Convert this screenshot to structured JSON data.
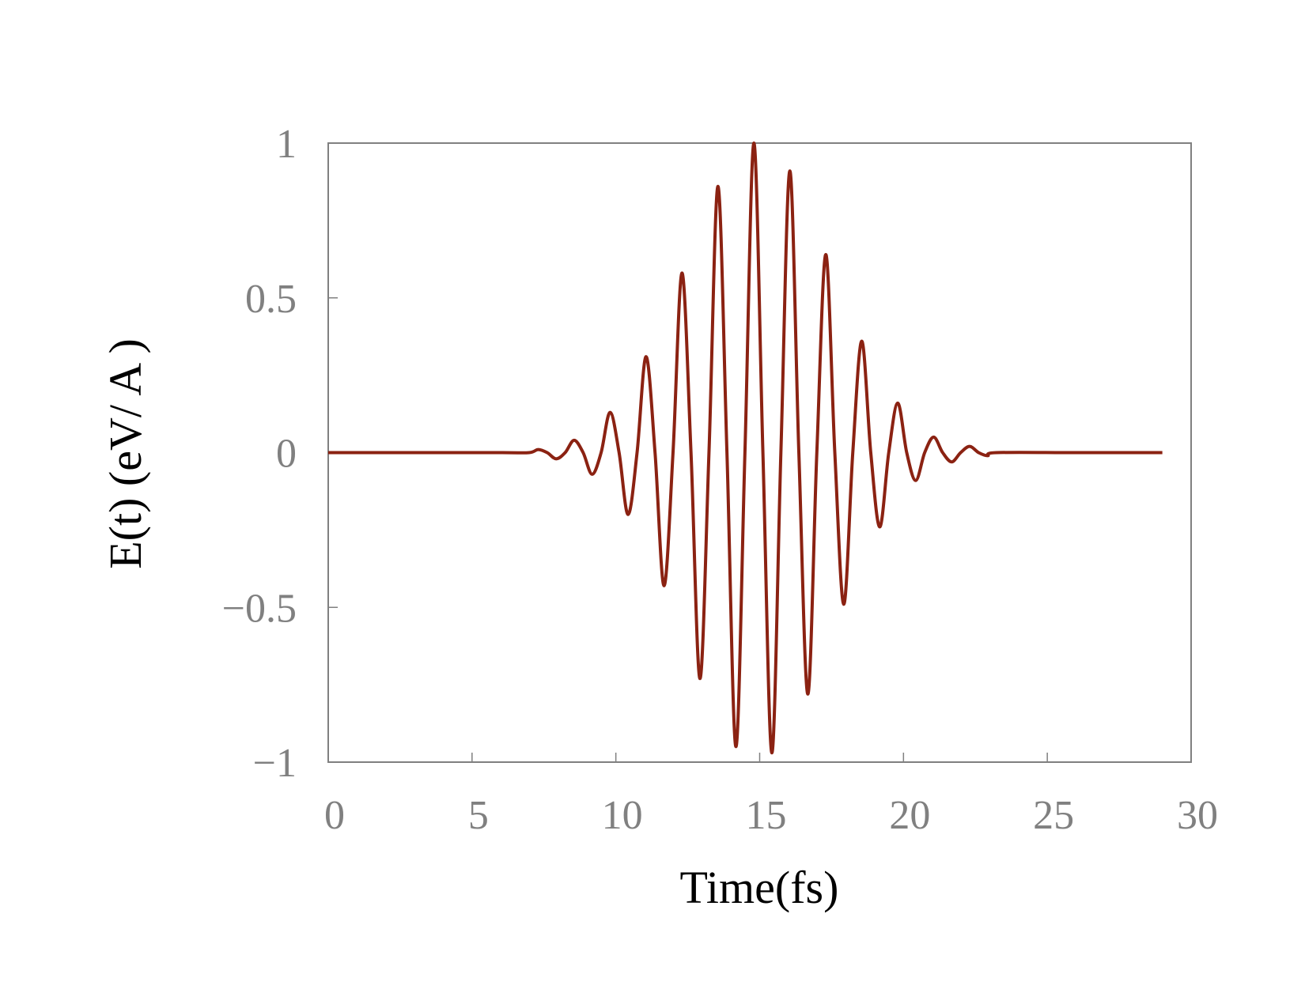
{
  "chart_data": {
    "type": "line",
    "xlabel": "Time(fs)",
    "ylabel": "E(t) (eV/ A )",
    "x": [
      0,
      3,
      6,
      6.9875,
      7.3,
      7.6125,
      7.925,
      8.2375,
      8.55,
      8.8625,
      9.175,
      9.4875,
      9.8,
      10.1125,
      10.425,
      10.7375,
      11.05,
      11.3625,
      11.675,
      11.9875,
      12.3,
      12.6125,
      12.925,
      13.2375,
      13.55,
      13.8625,
      14.175,
      14.4875,
      14.8,
      15.1125,
      15.425,
      15.7375,
      16.05,
      16.3625,
      16.675,
      16.9875,
      17.3,
      17.6125,
      17.925,
      18.2375,
      18.55,
      18.8625,
      19.175,
      19.4875,
      19.8,
      20.1125,
      20.425,
      20.7375,
      21.05,
      21.3625,
      21.675,
      21.9875,
      22.3,
      22.6125,
      22.925,
      23.2375,
      26,
      29
    ],
    "series": [
      {
        "color": "#8b2212",
        "values": [
          0,
          0,
          0,
          0,
          0.01,
          0,
          -0.02,
          0,
          0.04,
          0,
          -0.07,
          0,
          0.13,
          0,
          -0.2,
          0,
          0.31,
          0,
          -0.43,
          0,
          0.58,
          0,
          -0.73,
          0,
          0.86,
          0,
          -0.95,
          0,
          1.0,
          0,
          -0.97,
          0,
          0.91,
          0,
          -0.78,
          0,
          0.64,
          0,
          -0.49,
          0,
          0.36,
          0,
          -0.24,
          0,
          0.16,
          0,
          -0.09,
          0,
          0.05,
          0,
          -0.03,
          0,
          0.02,
          0,
          -0.01,
          0,
          0,
          0
        ]
      }
    ],
    "xlim": [
      0,
      30
    ],
    "xticks": [
      0,
      5,
      10,
      15,
      20,
      25,
      30
    ],
    "ylim": [
      -1,
      1
    ],
    "yticks": [
      {
        "value": -1,
        "label": "−1"
      },
      {
        "value": -0.5,
        "label": "−0.5"
      },
      0,
      0.5,
      1
    ]
  }
}
